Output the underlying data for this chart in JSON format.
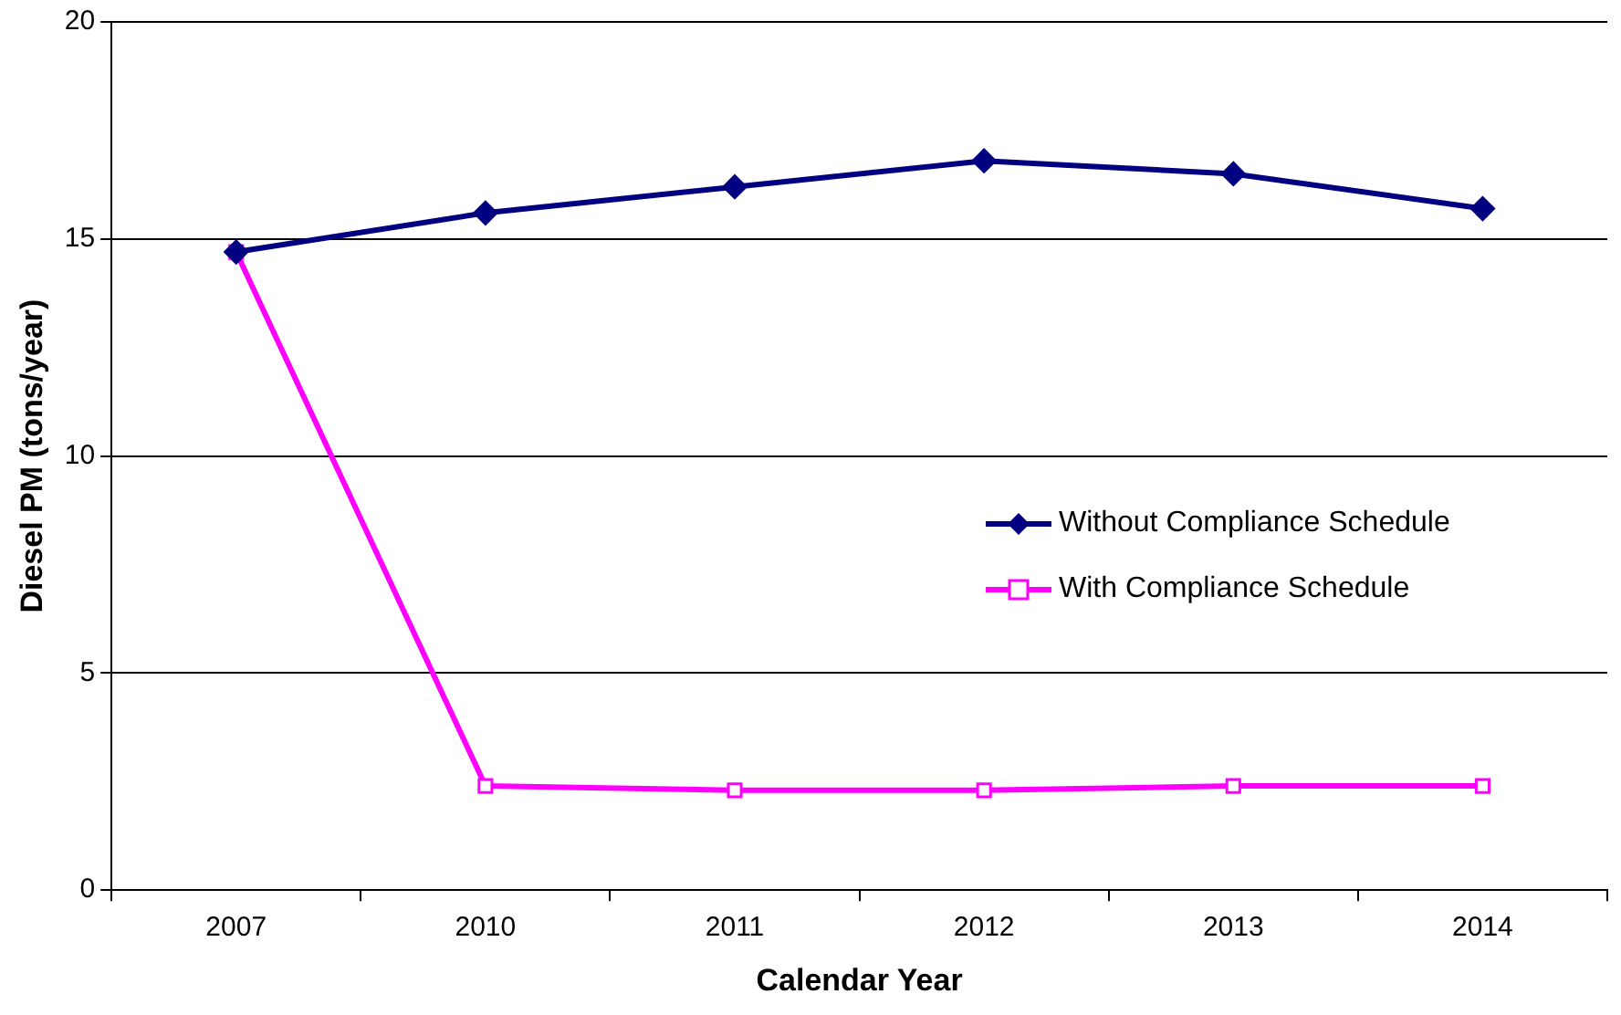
{
  "chart_data": {
    "type": "line",
    "xlabel": "Calendar Year",
    "ylabel": "Diesel PM (tons/year)",
    "categories": [
      "2007",
      "2010",
      "2011",
      "2012",
      "2013",
      "2014"
    ],
    "series": [
      {
        "name": "Without Compliance Schedule",
        "color": "#000080",
        "marker": "diamond",
        "values": [
          14.7,
          15.6,
          16.2,
          16.8,
          16.5,
          15.7
        ]
      },
      {
        "name": "With Compliance Schedule",
        "color": "#ff00ff",
        "marker": "square",
        "values": [
          14.7,
          2.4,
          2.3,
          2.3,
          2.4,
          2.4
        ]
      }
    ],
    "ylim": [
      0,
      20
    ],
    "yticks": [
      0,
      5,
      10,
      15,
      20
    ],
    "grid": "y",
    "legend": "right",
    "line_style": "solid"
  }
}
